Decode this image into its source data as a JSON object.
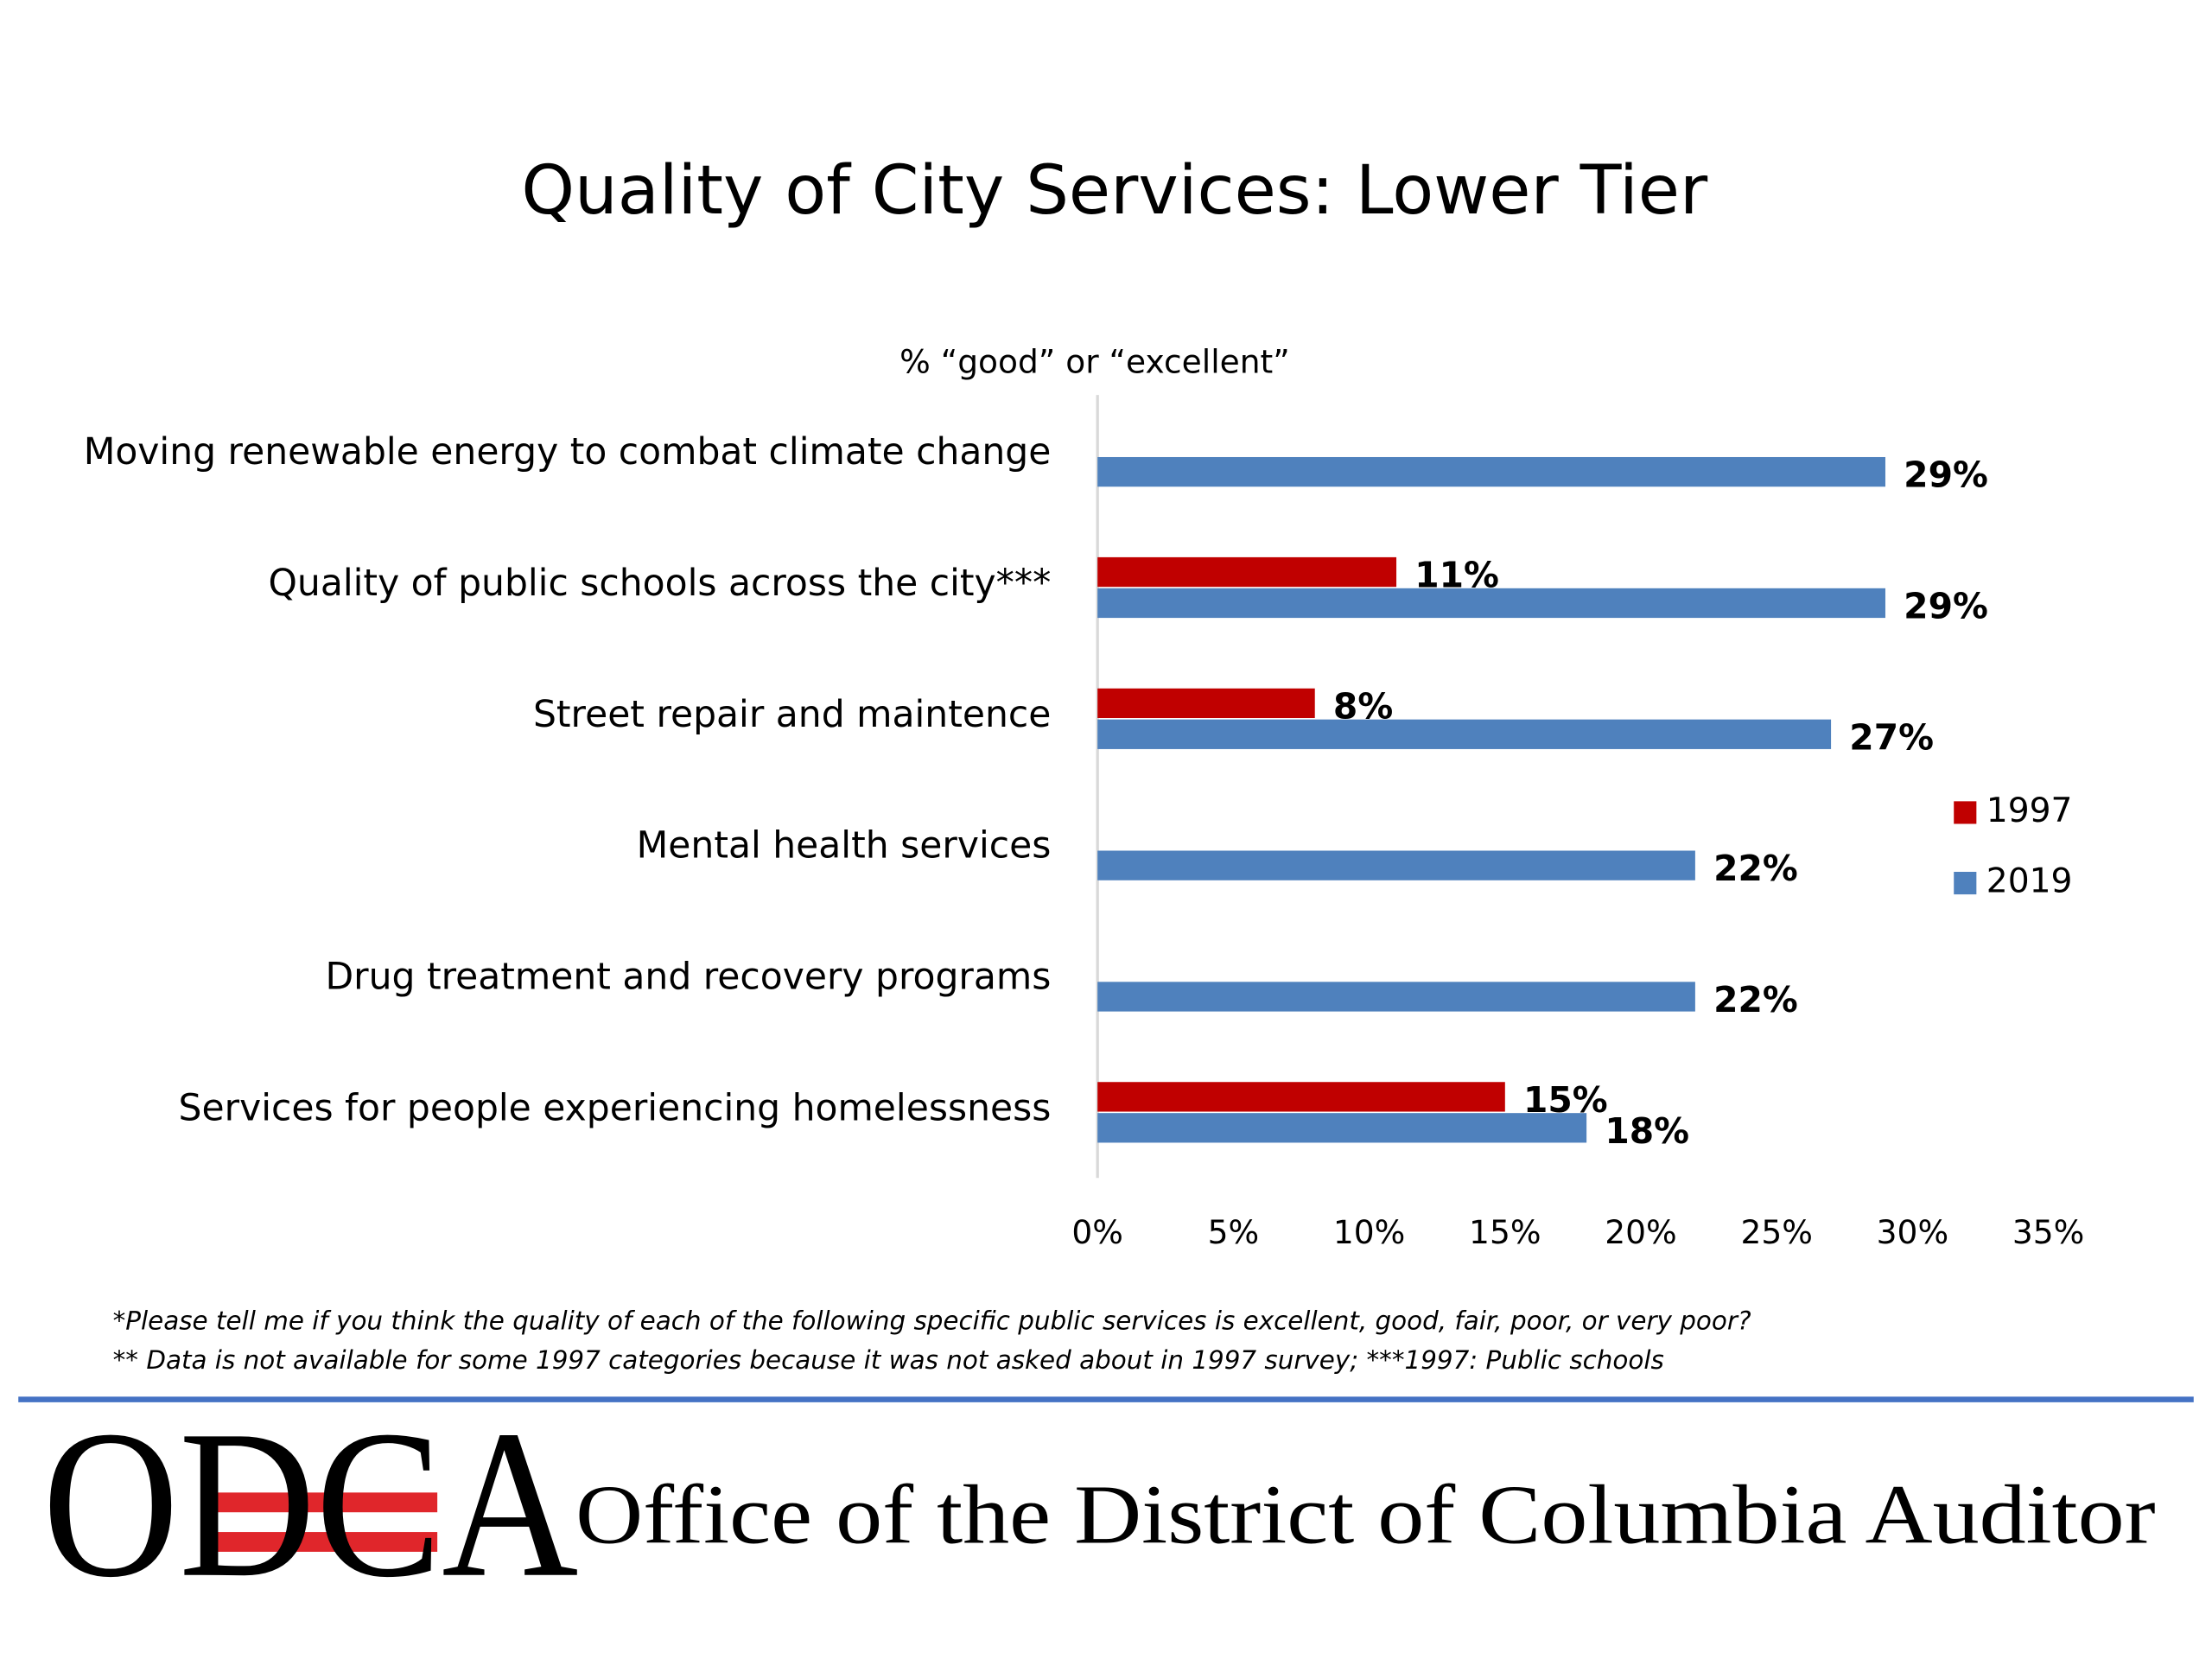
{
  "chart_data": {
    "type": "bar",
    "orientation": "horizontal",
    "title": "Quality of City Services: Lower Tier",
    "x_label": "% “good” or “excellent”",
    "categories": [
      "Moving renewable energy to combat climate change",
      "Quality of public schools across the city***",
      "Street repair and maintence",
      "Mental health services",
      "Drug treatment and recovery programs",
      "Services for people experiencing homelessness"
    ],
    "series": [
      {
        "name": "1997",
        "color": "#c00000",
        "values": [
          null,
          11,
          8,
          null,
          null,
          15
        ],
        "value_labels": [
          null,
          "11%",
          "8%",
          null,
          null,
          "15%"
        ]
      },
      {
        "name": "2019",
        "color": "#4f81bd",
        "values": [
          29,
          29,
          27,
          22,
          22,
          18
        ],
        "value_labels": [
          "29%",
          "29%",
          "27%",
          "22%",
          "22%",
          "18%"
        ]
      }
    ],
    "xlim": [
      0,
      35
    ],
    "xticks": [
      {
        "value": 0,
        "label": "0%"
      },
      {
        "value": 5,
        "label": "5%"
      },
      {
        "value": 10,
        "label": "10%"
      },
      {
        "value": 15,
        "label": "15%"
      },
      {
        "value": 20,
        "label": "20%"
      },
      {
        "value": 25,
        "label": "25%"
      },
      {
        "value": 30,
        "label": "30%"
      },
      {
        "value": 35,
        "label": "35%"
      }
    ],
    "grid": false,
    "legend": "right"
  },
  "footnotes": [
    "*Please tell me if you think the quality of each of the following specific public services is excellent, good, fair, poor, or very poor?",
    "** Data is not available for some 1997 categories because it was not asked about in 1997 survey; ***1997: Public schools"
  ],
  "footer": {
    "logo": "ODCA",
    "organization": "Office of the District of Columbia Auditor"
  }
}
